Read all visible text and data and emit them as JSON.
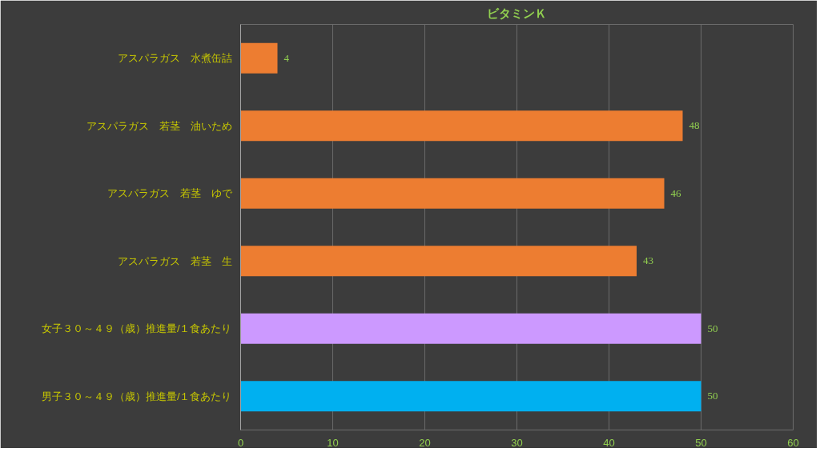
{
  "chart_data": {
    "type": "bar",
    "orientation": "horizontal",
    "title": "ビタミンＫ",
    "categories": [
      "アスパラガス　水煮缶詰",
      "アスパラガス　若茎　油いため",
      "アスパラガス　若茎　ゆで",
      "アスパラガス　若茎　生",
      "女子３０～４９（歳）推進量/１食あたり",
      "男子３０～４９（歳）推進量/１食あたり"
    ],
    "values": [
      4,
      48,
      46,
      43,
      50,
      50
    ],
    "colors": [
      "#ed7d31",
      "#ed7d31",
      "#ed7d31",
      "#ed7d31",
      "#cc99ff",
      "#00b0f0"
    ],
    "xlim": [
      0,
      60
    ],
    "xticks": [
      0,
      10,
      20,
      30,
      40,
      50,
      60
    ],
    "grid": "x",
    "data_labels": true
  }
}
